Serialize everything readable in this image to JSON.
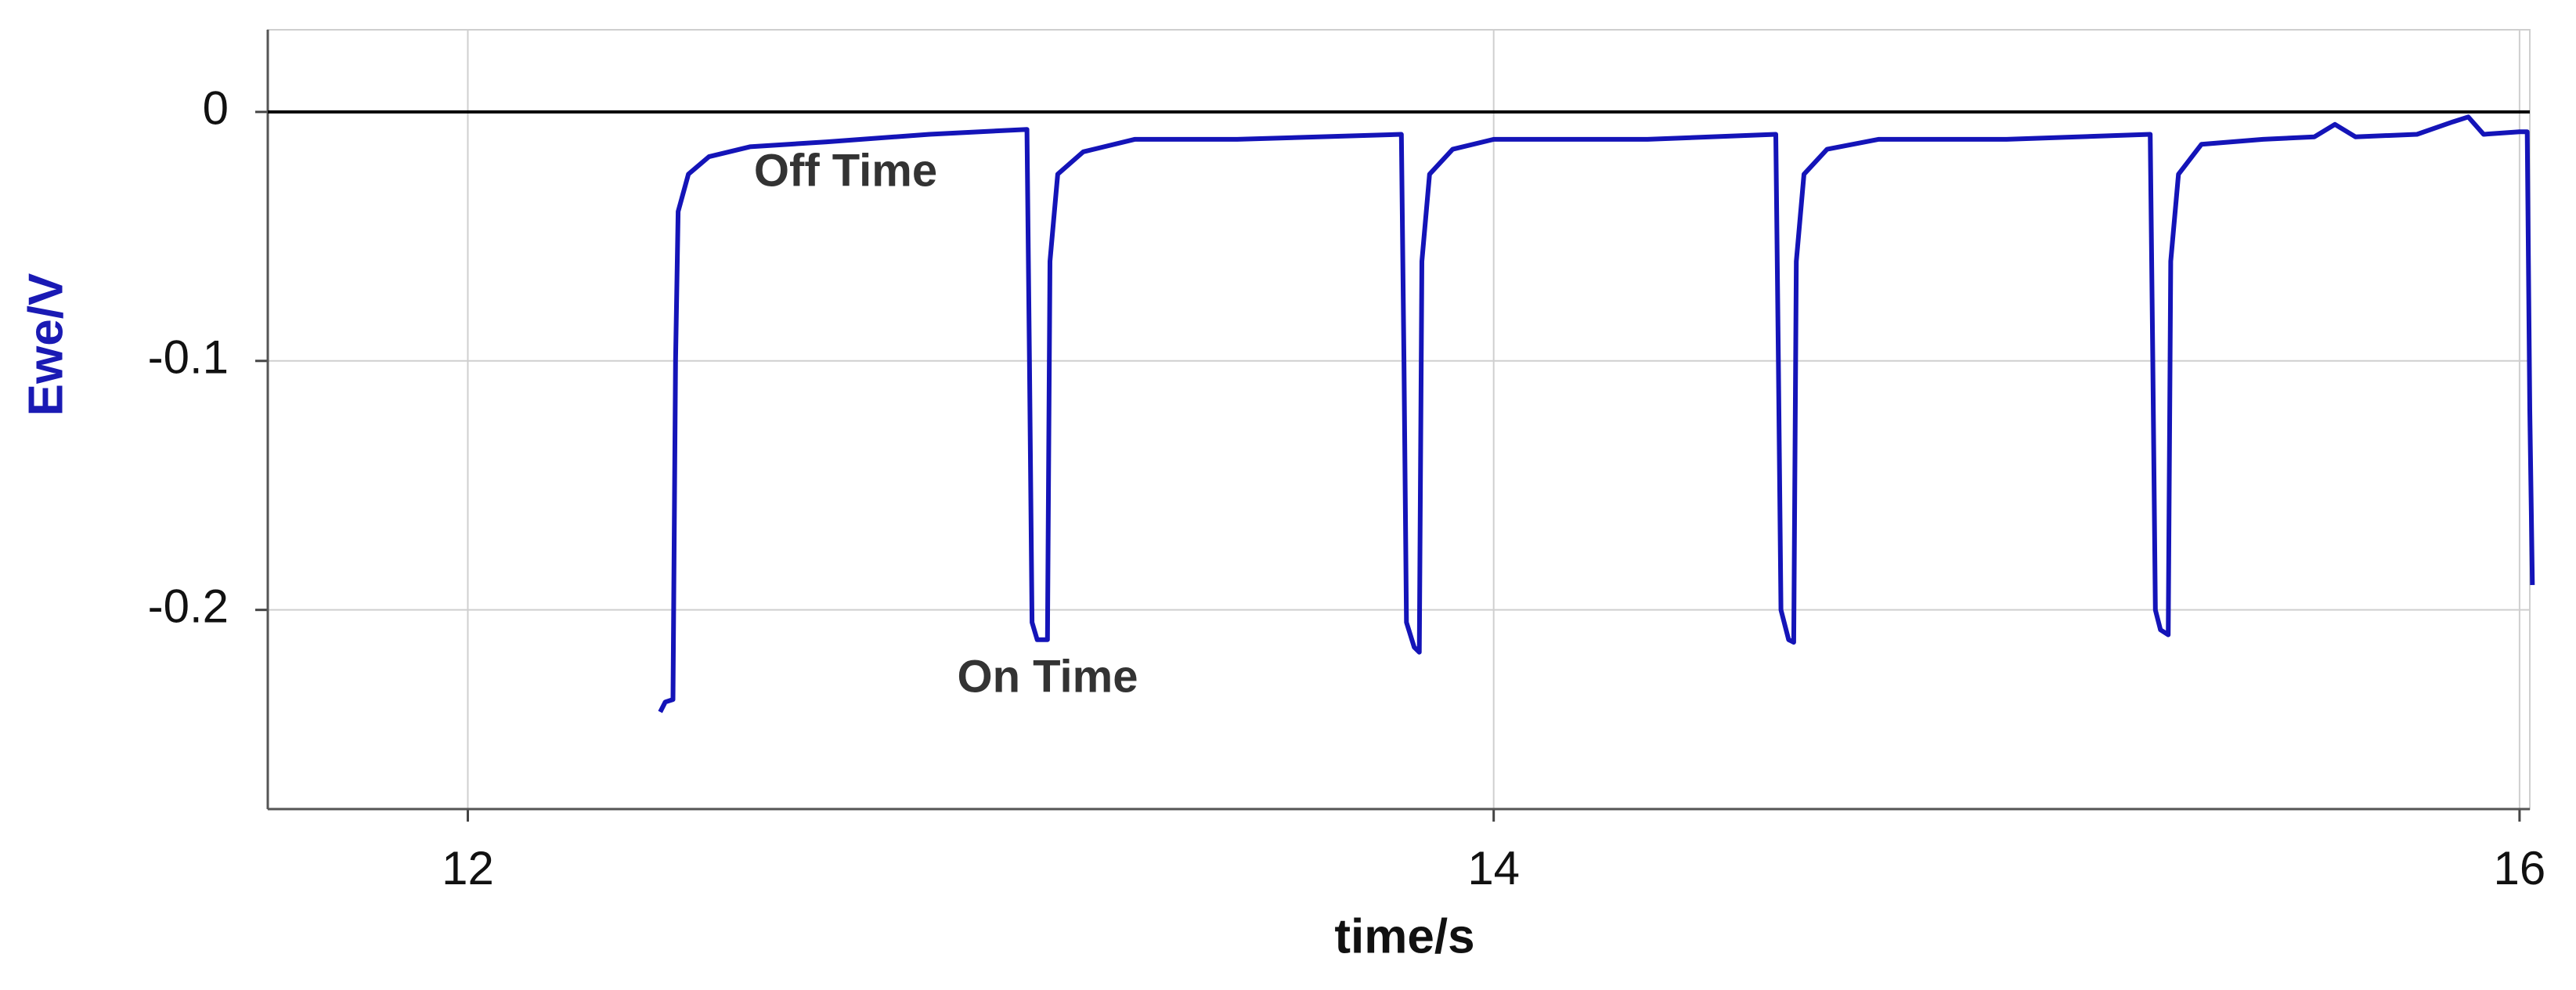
{
  "chart_data": {
    "type": "line",
    "x_label": "time/s",
    "y_label": "Ewe/V",
    "y_label_color": "#1a1ab4",
    "color": "#1414b8",
    "grid": true,
    "xlim": [
      11.61,
      16.02
    ],
    "ylim": [
      -0.28,
      0.033
    ],
    "xticks": [
      12,
      14,
      16
    ],
    "yticks": [
      -0.2,
      -0.1,
      0
    ],
    "reference_line": 0,
    "annotations": [
      "Off Time",
      "On Time"
    ],
    "x": [
      12.375,
      12.385,
      12.4,
      12.405,
      12.41,
      12.43,
      12.47,
      12.55,
      12.7,
      12.9,
      13.09,
      13.095,
      13.1,
      13.11,
      13.13,
      13.135,
      13.15,
      13.2,
      13.3,
      13.5,
      13.82,
      13.825,
      13.83,
      13.845,
      13.855,
      13.86,
      13.875,
      13.92,
      14.0,
      14.3,
      14.55,
      14.555,
      14.56,
      14.575,
      14.585,
      14.59,
      14.605,
      14.65,
      14.75,
      15.0,
      15.28,
      15.285,
      15.29,
      15.3,
      15.315,
      15.32,
      15.335,
      15.38,
      15.5,
      15.6,
      15.64,
      15.68,
      15.8,
      15.87,
      15.9,
      15.93,
      16.0,
      16.015,
      16.02,
      16.025
    ],
    "values": [
      -0.241,
      -0.237,
      -0.236,
      -0.1,
      -0.04,
      -0.025,
      -0.018,
      -0.014,
      -0.012,
      -0.009,
      -0.007,
      -0.1,
      -0.205,
      -0.212,
      -0.212,
      -0.06,
      -0.025,
      -0.016,
      -0.011,
      -0.011,
      -0.009,
      -0.1,
      -0.205,
      -0.215,
      -0.217,
      -0.06,
      -0.025,
      -0.015,
      -0.011,
      -0.011,
      -0.009,
      -0.1,
      -0.2,
      -0.212,
      -0.213,
      -0.06,
      -0.025,
      -0.015,
      -0.011,
      -0.011,
      -0.009,
      -0.1,
      -0.2,
      -0.208,
      -0.21,
      -0.06,
      -0.025,
      -0.013,
      -0.011,
      -0.01,
      -0.005,
      -0.01,
      -0.009,
      -0.004,
      -0.002,
      -0.009,
      -0.008,
      -0.008,
      -0.12,
      -0.19
    ]
  }
}
